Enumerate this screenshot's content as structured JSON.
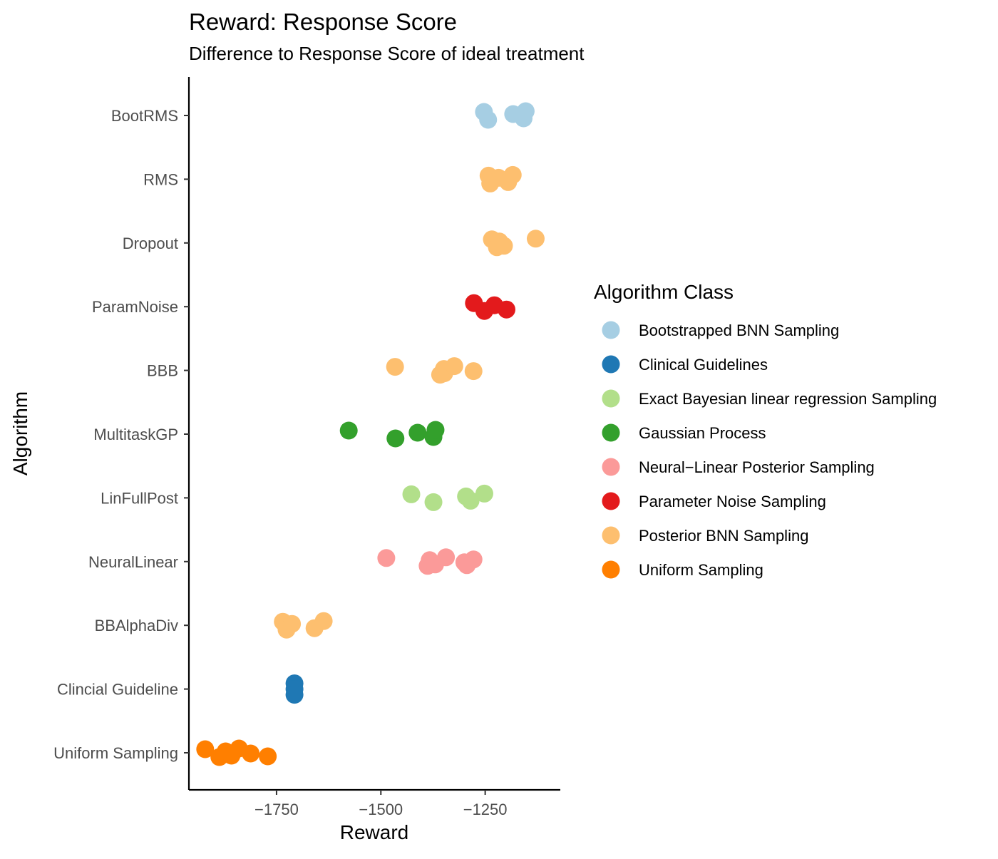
{
  "chart_data": {
    "type": "scatter",
    "title": "Reward: Response Score",
    "subtitle": "Difference to Response Score of ideal treatment",
    "xlabel": "Reward",
    "ylabel": "Algorithm",
    "xlim": [
      -1960,
      -1070
    ],
    "x_ticks": [
      -1750,
      -1500,
      -1250
    ],
    "x_tick_labels": [
      "−1750",
      "−1500",
      "−1250"
    ],
    "categories": [
      "BootRMS",
      "RMS",
      "Dropout",
      "ParamNoise",
      "BBB",
      "MultitaskGP",
      "LinFullPost",
      "NeuralLinear",
      "BBAlphaDiv",
      "Clincial Guideline",
      "Uniform Sampling"
    ],
    "grid": false,
    "legend": {
      "title": "Algorithm Class",
      "placement": "right",
      "entries": [
        {
          "label": "Bootstrapped BNN Sampling",
          "color": "#a6cee3"
        },
        {
          "label": "Clinical Guidelines",
          "color": "#1f78b4"
        },
        {
          "label": "Exact Bayesian linear regression Sampling",
          "color": "#b2df8a"
        },
        {
          "label": "Gaussian Process",
          "color": "#33a02c"
        },
        {
          "label": "Neural−Linear Posterior Sampling",
          "color": "#fb9a99"
        },
        {
          "label": "Parameter Noise Sampling",
          "color": "#e31a1c"
        },
        {
          "label": "Posterior BNN Sampling",
          "color": "#fdbf6f"
        },
        {
          "label": "Uniform Sampling",
          "color": "#ff7f00"
        }
      ]
    },
    "series": [
      {
        "category": "BootRMS",
        "color": "#a6cee3",
        "points": [
          -1253,
          -1243,
          -1183,
          -1158,
          -1153
        ]
      },
      {
        "category": "RMS",
        "color": "#fdbf6f",
        "points": [
          -1242,
          -1238,
          -1218,
          -1195,
          -1184
        ]
      },
      {
        "category": "Dropout",
        "color": "#fdbf6f",
        "points": [
          -1234,
          -1222,
          -1216,
          -1205,
          -1129
        ]
      },
      {
        "category": "ParamNoise",
        "color": "#e31a1c",
        "points": [
          -1277,
          -1252,
          -1228,
          -1199
        ]
      },
      {
        "category": "BBB",
        "color": "#fdbf6f",
        "points": [
          -1466,
          -1358,
          -1349,
          -1348,
          -1324,
          -1278
        ]
      },
      {
        "category": "MultitaskGP",
        "color": "#33a02c",
        "points": [
          -1577,
          -1465,
          -1412,
          -1374,
          -1369
        ]
      },
      {
        "category": "LinFullPost",
        "color": "#b2df8a",
        "points": [
          -1427,
          -1374,
          -1296,
          -1285,
          -1252
        ]
      },
      {
        "category": "NeuralLinear",
        "color": "#fb9a99",
        "points": [
          -1487,
          -1388,
          -1383,
          -1370,
          -1344,
          -1300,
          -1294,
          -1278
        ]
      },
      {
        "category": "BBAlphaDiv",
        "color": "#fdbf6f",
        "points": [
          -1735,
          -1726,
          -1713,
          -1659,
          -1637
        ]
      },
      {
        "category": "Clincial Guideline",
        "color": "#1f78b4",
        "points": [
          -1707,
          -1707,
          -1707
        ]
      },
      {
        "category": "Uniform Sampling",
        "color": "#ff7f00",
        "points": [
          -1921,
          -1887,
          -1872,
          -1858,
          -1840,
          -1812,
          -1771
        ]
      }
    ]
  }
}
